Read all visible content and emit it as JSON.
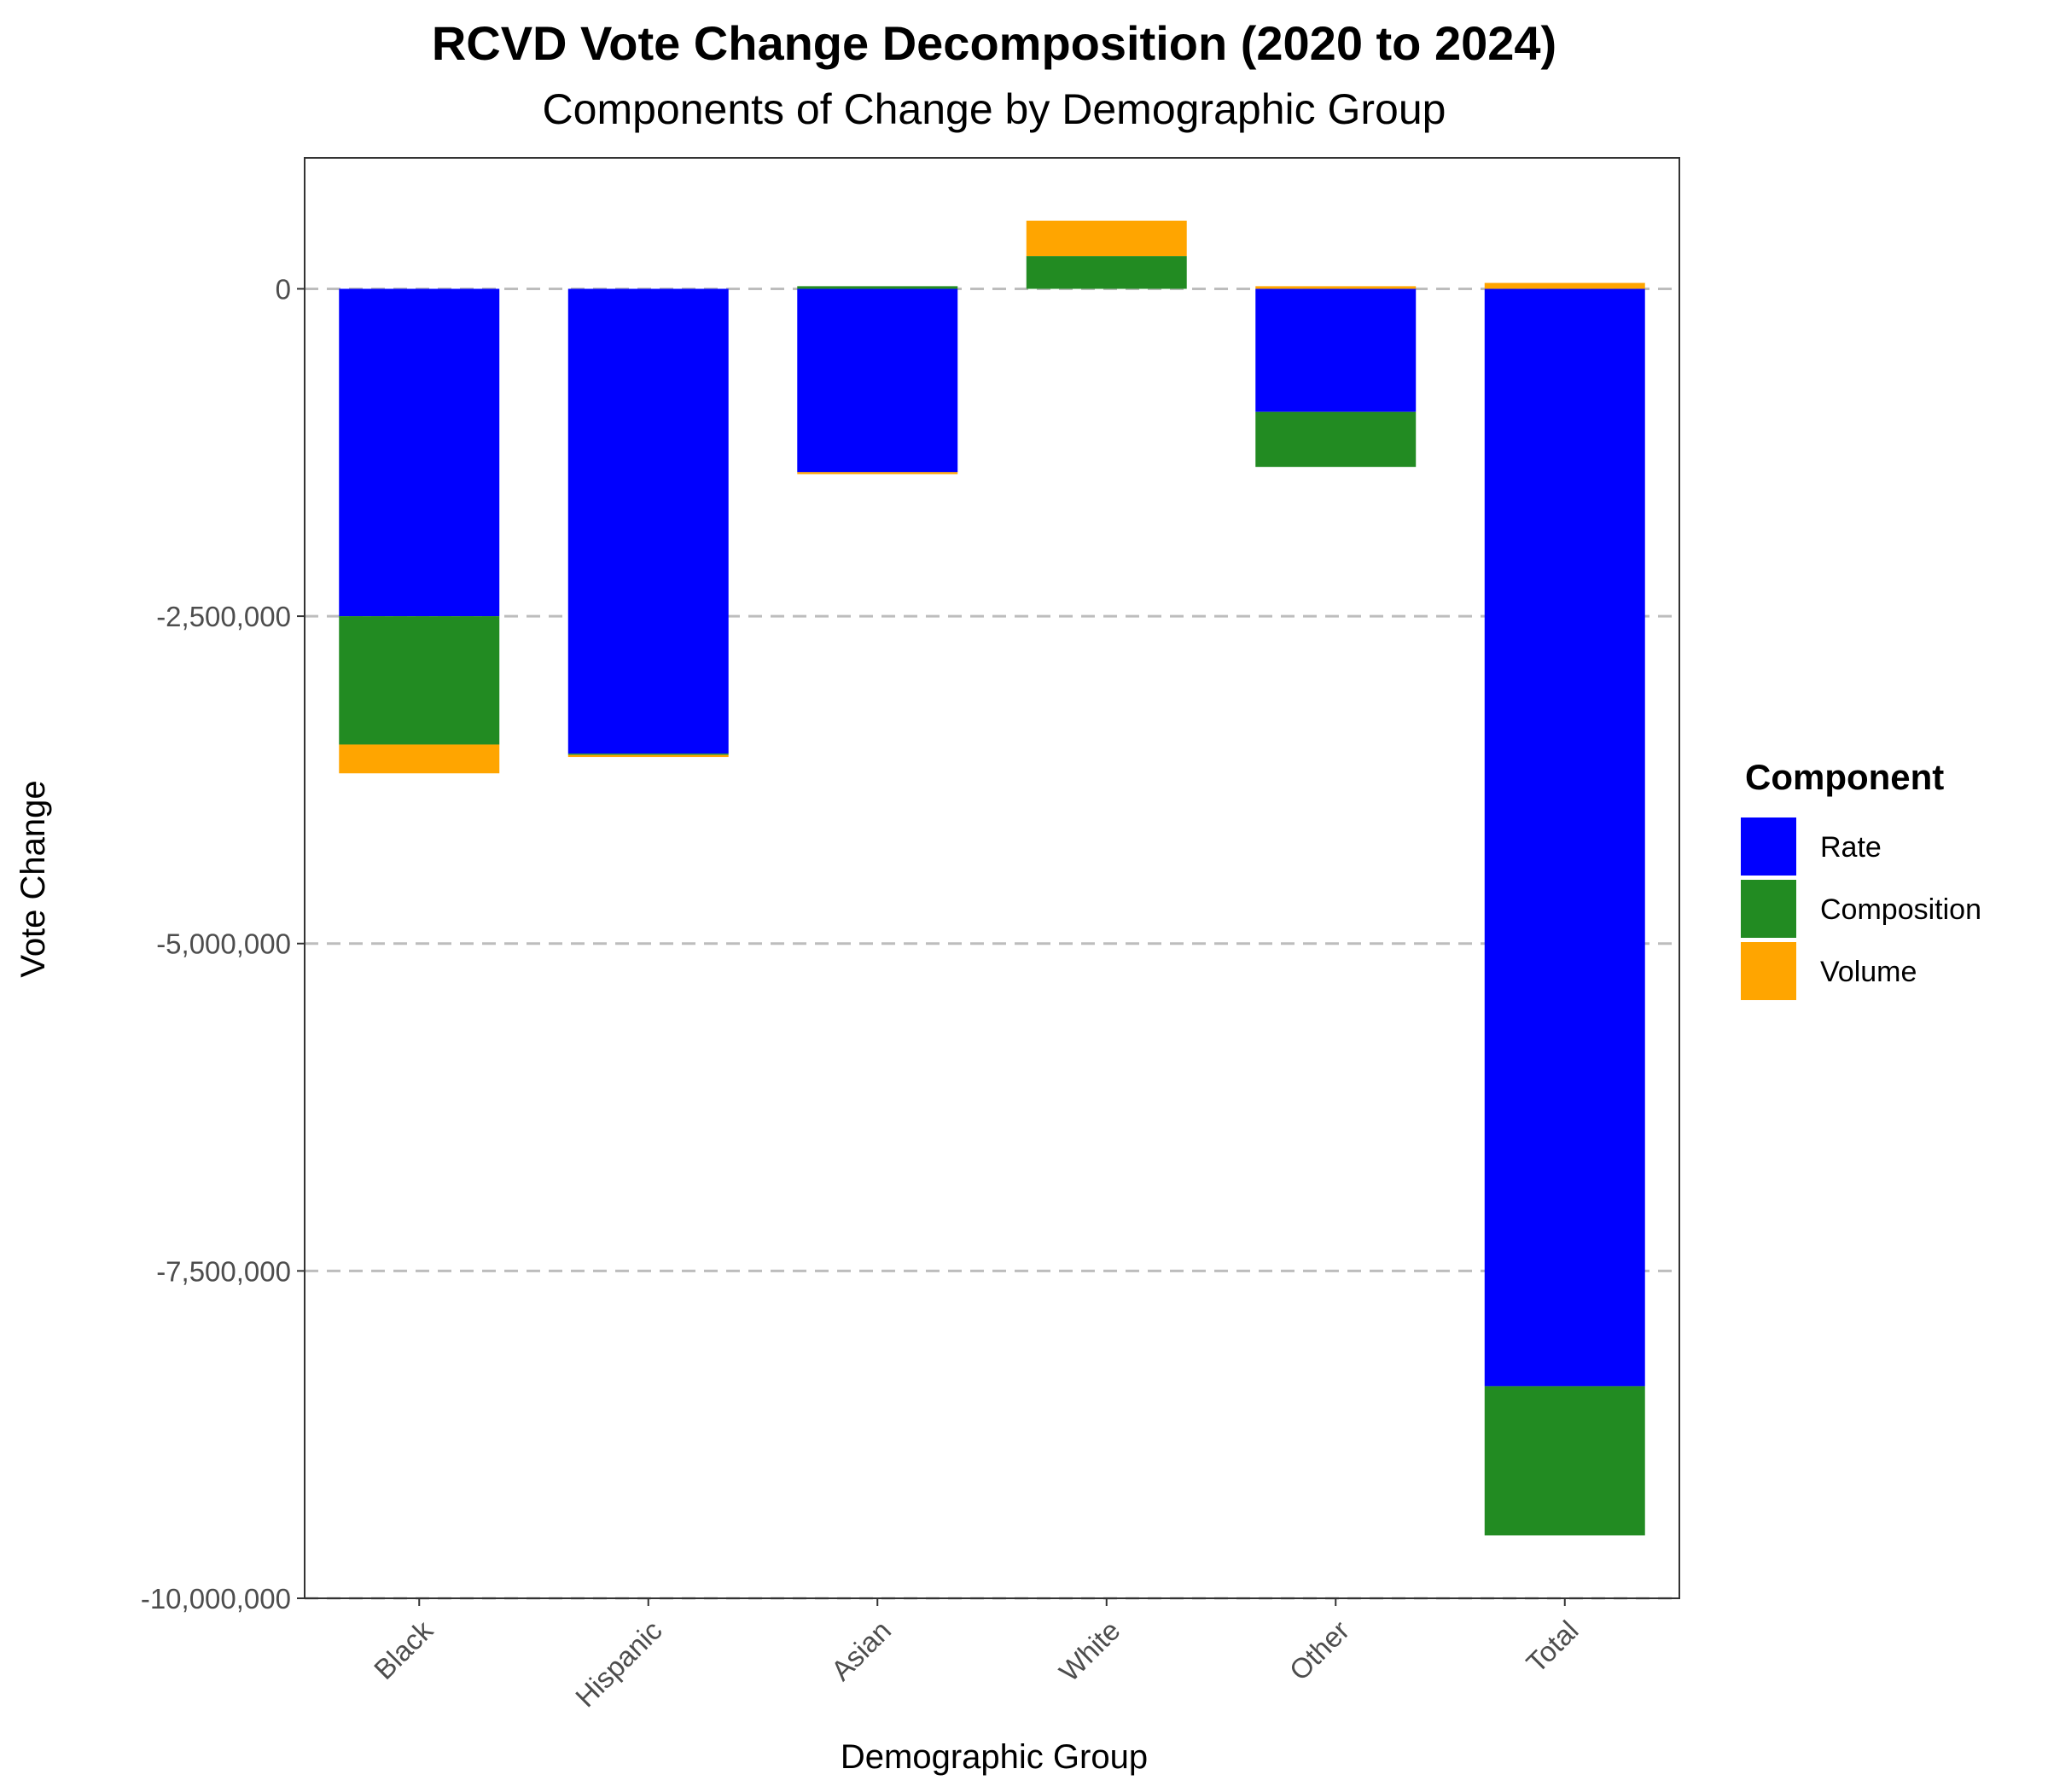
{
  "chart_data": {
    "type": "bar",
    "stacked": true,
    "title": "RCVD Vote Change Decomposition (2020 to 2024)",
    "subtitle": "Components of Change by Demographic Group",
    "xlabel": "Demographic Group",
    "ylabel": "Vote Change",
    "ylim": [
      -10000000,
      1000000
    ],
    "yticks": [
      0,
      -2500000,
      -5000000,
      -7500000,
      -10000000
    ],
    "ytick_labels": [
      "0",
      "-2,500,000",
      "-5,000,000",
      "-7,500,000",
      "-10,000,000"
    ],
    "grid": "horizontal dashed at major ticks",
    "categories": [
      "Black",
      "Hispanic",
      "Asian",
      "White",
      "Other",
      "Total"
    ],
    "series": [
      {
        "name": "Rate",
        "color": "#0000FF",
        "values": [
          -2500000,
          -3550000,
          -1400000,
          0,
          -940000,
          -8380000
        ]
      },
      {
        "name": "Composition",
        "color": "#228B22",
        "values": [
          -980000,
          -10000,
          20000,
          250000,
          -420000,
          -1140000
        ]
      },
      {
        "name": "Volume",
        "color": "#FFA500",
        "values": [
          -220000,
          -15000,
          -15000,
          270000,
          20000,
          45000
        ]
      }
    ],
    "legend": {
      "title": "Component",
      "position": "right"
    }
  }
}
